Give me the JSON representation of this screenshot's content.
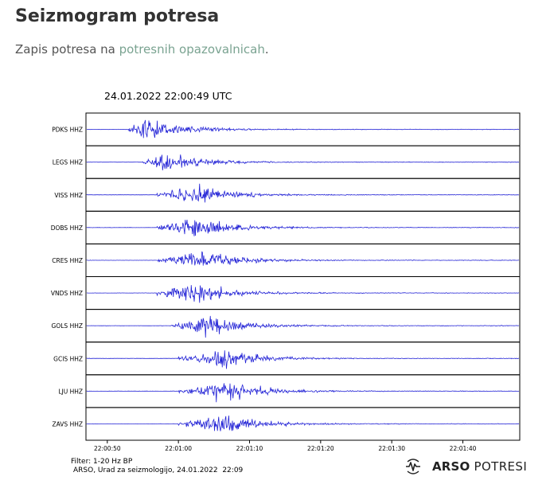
{
  "page": {
    "title": "Seizmogram potresa",
    "intro_before": "Zapis potresa na ",
    "intro_link": "potresnih opazovalnicah",
    "intro_after": "."
  },
  "chart_data": {
    "type": "line",
    "title": "24.01.2022  22:00:49 UTC",
    "x_tick_labels": [
      "22:00:50",
      "22:01:00",
      "22:01:10",
      "22:01:20",
      "22:01:30",
      "22:01:40"
    ],
    "xlim": [
      "22:00:47",
      "22:01:48"
    ],
    "trace_color": "#2323d6",
    "series": [
      {
        "name": "PDKS HHZ",
        "p_arrival": "22:00:53",
        "peak_time": "22:00:55"
      },
      {
        "name": "LEGS HHZ",
        "p_arrival": "22:00:55",
        "peak_time": "22:00:58"
      },
      {
        "name": "VISS HHZ",
        "p_arrival": "22:00:57",
        "peak_time": "22:01:02"
      },
      {
        "name": "DOBS HHZ",
        "p_arrival": "22:00:57",
        "peak_time": "22:01:02"
      },
      {
        "name": "CRES HHZ",
        "p_arrival": "22:00:57",
        "peak_time": "22:01:03"
      },
      {
        "name": "VNDS HHZ",
        "p_arrival": "22:00:57",
        "peak_time": "22:01:02"
      },
      {
        "name": "GOLS HHZ",
        "p_arrival": "22:00:59",
        "peak_time": "22:01:04"
      },
      {
        "name": "GCIS HHZ",
        "p_arrival": "22:01:00",
        "peak_time": "22:01:06"
      },
      {
        "name": "LJU HHZ",
        "p_arrival": "22:01:00",
        "peak_time": "22:01:07"
      },
      {
        "name": "ZAVS HHZ",
        "p_arrival": "22:01:00",
        "peak_time": "22:01:06"
      }
    ]
  },
  "footer": {
    "filter": "Filter: 1-20 Hz BP",
    "credit": "ARSO, Urad za seizmologijo, 24.01.2022  22:09"
  },
  "logo": {
    "bold": "ARSO",
    "light": "POTRESI"
  }
}
